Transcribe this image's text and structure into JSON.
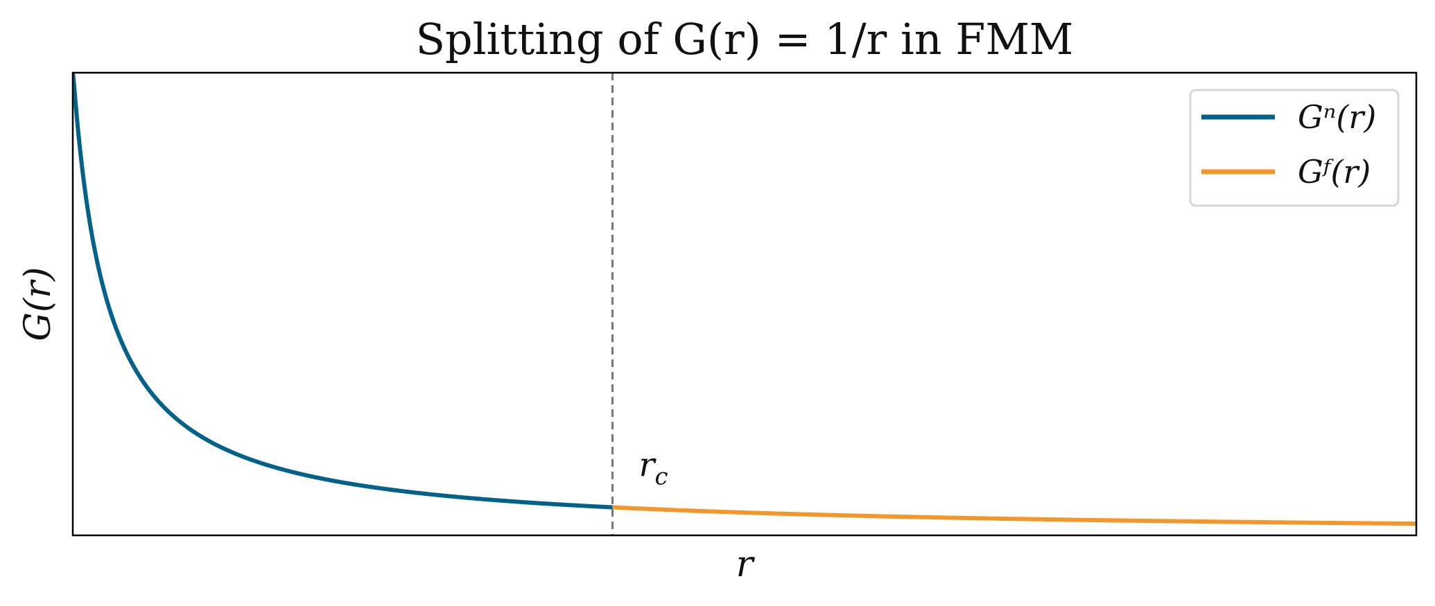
{
  "chart_data": {
    "type": "line",
    "title": "Splitting of G(r) = 1/r in FMM",
    "xlabel": "r",
    "ylabel": "G(r)",
    "x_ticks": [],
    "y_ticks": [],
    "function": "1/r",
    "xlim": [
      0.3,
      12.0
    ],
    "ylim": [
      0.0,
      3.3
    ],
    "cutoff": {
      "x": 5.0,
      "label": "r_c",
      "style": "dashed",
      "color": "#777777"
    },
    "series": [
      {
        "name": "Gⁿ(r)",
        "color": "#03628a",
        "x_range": [
          0.3,
          5.0
        ]
      },
      {
        "name": "Gᶠ(r)",
        "color": "#f5962a",
        "x_range": [
          5.0,
          12.0
        ]
      }
    ],
    "legend_position": "top-right",
    "grid": false
  }
}
